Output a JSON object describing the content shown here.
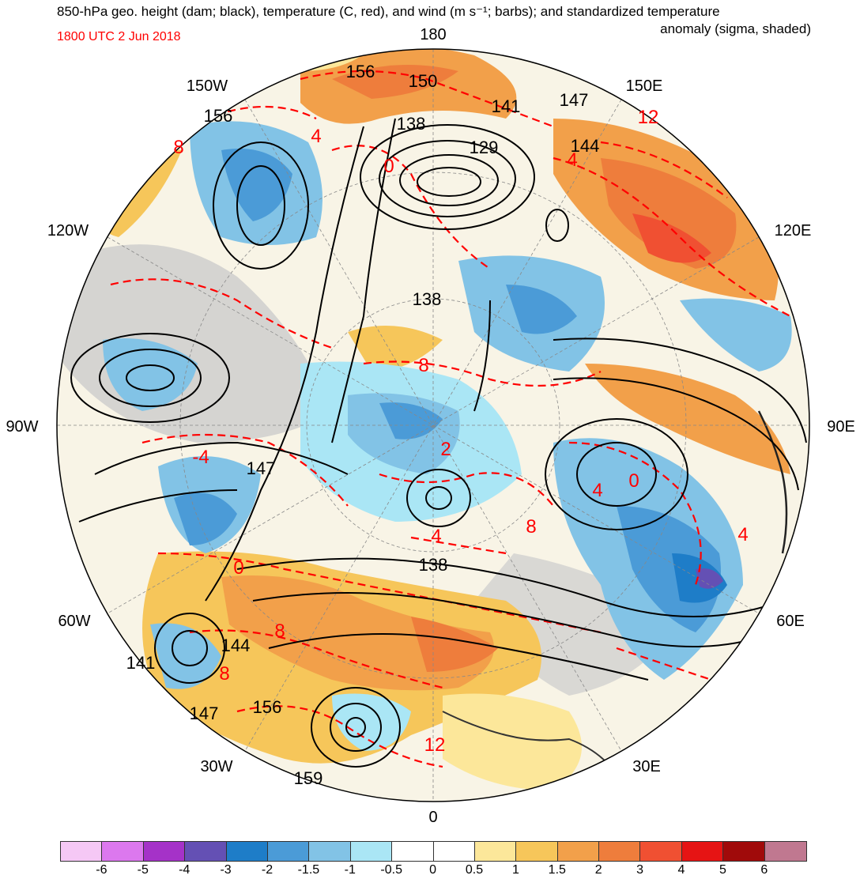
{
  "header": {
    "title_line1": "850-hPa geo. height (dam; black), temperature (C, red), and wind (m s⁻¹; barbs); and standardized temperature",
    "title_line2": "anomaly (sigma, shaded)",
    "valid_time": "1800 UTC 2 Jun 2018",
    "valid_time_color": "#ff0000"
  },
  "map": {
    "projection": "north-polar-stereographic",
    "longitude_labels": {
      "lon_180": "180",
      "lon_150E": "150E",
      "lon_120E": "120E",
      "lon_90E": "90E",
      "lon_60E": "60E",
      "lon_30E": "30E",
      "lon_0": "0",
      "lon_30W": "30W",
      "lon_60W": "60W",
      "lon_90W": "90W",
      "lon_120W": "120W",
      "lon_150W": "150W"
    },
    "height_labels": {
      "h1": "156",
      "h2": "150",
      "h3": "156",
      "h4": "141",
      "h5": "147",
      "h6": "138",
      "h7": "129",
      "h8": "144",
      "h9": "138",
      "h10": "147",
      "h11": "138",
      "h12": "144",
      "h13": "141",
      "h14": "147",
      "h15": "156",
      "h16": "159"
    },
    "temperature_labels": {
      "t1": "12",
      "t2": "4",
      "t3": "8",
      "t4": "4",
      "t5": "0",
      "t6": "8",
      "t7": "-4",
      "t8": "2",
      "t9": "4",
      "t10": "4",
      "t11": "0",
      "t12": "8",
      "t13": "0",
      "t14": "8",
      "t15": "8",
      "t16": "12",
      "t17": "4"
    },
    "contour_colors": {
      "height": "#000000",
      "temperature": "#ff0000"
    }
  },
  "colorbar": {
    "colors": [
      "#f5c8f5",
      "#dc78ee",
      "#a532c8",
      "#6450b4",
      "#1e7dc8",
      "#4b9bd7",
      "#82c3e6",
      "#aae6f5",
      "#ffffff",
      "#ffffff",
      "#fce79a",
      "#f6c65a",
      "#f2a04a",
      "#ee7d3c",
      "#f05032",
      "#e61414",
      "#a00a0a",
      "#c07890"
    ],
    "ticks": [
      "-6",
      "-5",
      "-4",
      "-3",
      "-2",
      "-1.5",
      "-1",
      "-0.5",
      "0",
      "0.5",
      "1",
      "1.5",
      "2",
      "3",
      "4",
      "5",
      "6"
    ]
  },
  "colors": {
    "land_gray": "#cccccc",
    "coast": "#555555"
  }
}
